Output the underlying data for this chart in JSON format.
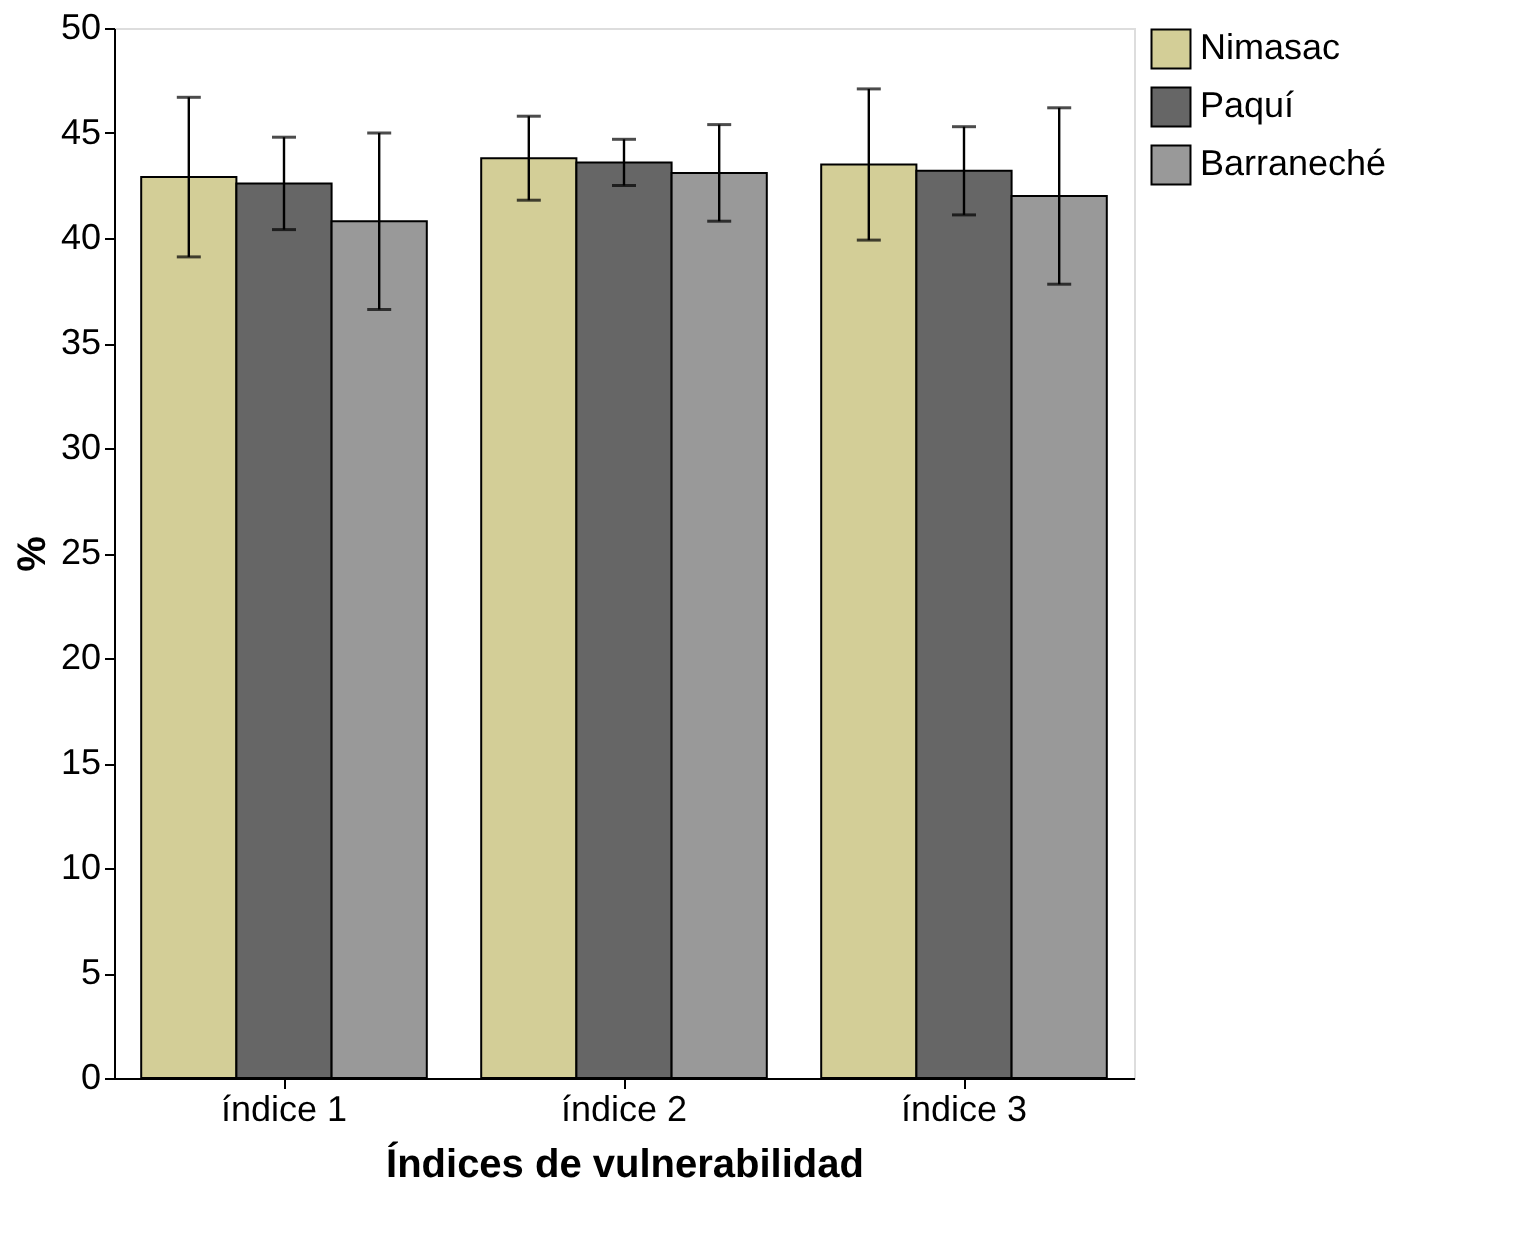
{
  "chart_data": {
    "type": "bar",
    "xlabel": "Índices de vulnerabilidad",
    "ylabel": "%",
    "categories": [
      "índice 1",
      "índice 2",
      "índice 3"
    ],
    "series": [
      {
        "name": "Nimasac",
        "color": "#d3ce97",
        "values": [
          42.9,
          43.8,
          43.5
        ],
        "errors": [
          3.8,
          2.0,
          3.6
        ]
      },
      {
        "name": "Paquí",
        "color": "#666666",
        "values": [
          42.6,
          43.6,
          43.2
        ],
        "errors": [
          2.2,
          1.1,
          2.1
        ]
      },
      {
        "name": "Barraneché",
        "color": "#999999",
        "values": [
          40.8,
          43.1,
          42.0
        ],
        "errors": [
          4.2,
          2.3,
          4.2
        ]
      }
    ],
    "ylim": [
      0,
      50
    ],
    "yticks": [
      0,
      5,
      10,
      15,
      20,
      25,
      30,
      35,
      40,
      45,
      50
    ],
    "grid": false,
    "legend": "top right"
  }
}
